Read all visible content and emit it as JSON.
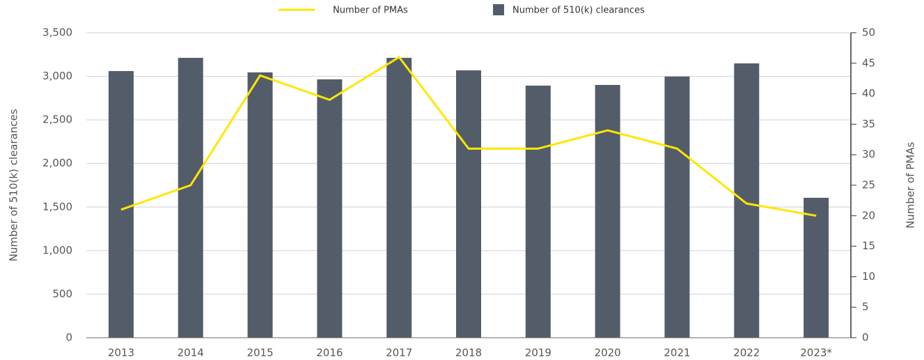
{
  "chart_data": {
    "type": "bar",
    "categories": [
      "2013",
      "2014",
      "2015",
      "2016",
      "2017",
      "2018",
      "2019",
      "2020",
      "2021",
      "2022",
      "2023*"
    ],
    "series": [
      {
        "name": "Number of PMAs",
        "type": "line",
        "color": "#ffe600",
        "axis": "y2",
        "values": [
          21,
          25,
          43,
          39,
          46,
          31,
          31,
          34,
          31,
          22,
          20
        ]
      },
      {
        "name": "Number of 510(k) clearances",
        "type": "bar",
        "color": "#535d6a",
        "values": [
          3060,
          3212,
          3045,
          2965,
          3212,
          3068,
          2893,
          2901,
          2997,
          3148,
          1606
        ]
      }
    ],
    "ylabel": "Number of 510(k) clearances",
    "y2label": "Number of PMAs",
    "ylim": [
      0,
      3500
    ],
    "yticks": [
      0,
      500,
      {
        "value": 1000,
        "label": "1,000"
      },
      {
        "value": 1500,
        "label": "1,500"
      },
      {
        "value": 2000,
        "label": "2,000"
      },
      {
        "value": 2500,
        "label": "2,500"
      },
      {
        "value": 3000,
        "label": "3,000"
      },
      {
        "value": 3500,
        "label": "3,500"
      }
    ],
    "y2lim": [
      0,
      50
    ],
    "y2ticks": [
      0,
      5,
      10,
      15,
      20,
      25,
      30,
      35,
      40,
      45,
      50
    ],
    "grid": true,
    "legend": "top"
  }
}
